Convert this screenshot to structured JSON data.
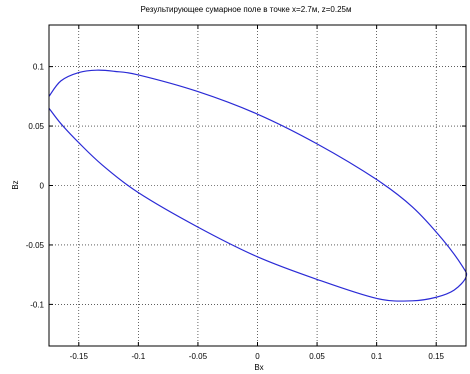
{
  "chart_data": {
    "type": "line",
    "title": "Результирующее сумарное поле в точке x=2.7м,  z=0.25м",
    "xlabel": "Bx",
    "ylabel": "Bz",
    "xlim": [
      -0.175,
      0.175
    ],
    "ylim": [
      -0.135,
      0.135
    ],
    "x_ticks": [
      -0.15,
      -0.1,
      -0.05,
      0,
      0.05,
      0.1,
      0.15
    ],
    "x_tick_labels": [
      "-0.15",
      "-0.1",
      "-0.05",
      "0",
      "0.05",
      "0.1",
      "0.15"
    ],
    "y_ticks": [
      -0.1,
      -0.05,
      0,
      0.05,
      0.1
    ],
    "y_tick_labels": [
      "-0.1",
      "-0.05",
      "0",
      "0.05",
      "0.1"
    ],
    "grid": true,
    "grid_style": "dotted",
    "box": true,
    "series": [
      {
        "color": "#2b2bd6",
        "x": [
          -0.175,
          -0.165,
          -0.15,
          -0.135,
          -0.12,
          -0.1,
          -0.05,
          0.0,
          0.05,
          0.1,
          0.13,
          0.155,
          0.172,
          0.175,
          0.165,
          0.15,
          0.13,
          0.1,
          0.05,
          0.0,
          -0.05,
          -0.1,
          -0.13,
          -0.15,
          -0.165,
          -0.175
        ],
        "y": [
          0.075,
          0.088,
          0.095,
          0.097,
          0.096,
          0.093,
          0.079,
          0.06,
          0.035,
          0.005,
          -0.018,
          -0.045,
          -0.068,
          -0.077,
          -0.088,
          -0.094,
          -0.097,
          -0.095,
          -0.079,
          -0.06,
          -0.035,
          -0.006,
          0.017,
          0.036,
          0.052,
          0.065
        ]
      }
    ]
  },
  "colors": {
    "axes": "#000000",
    "grid": "#000000",
    "background": "#ffffff",
    "line": "#2b2bd6"
  }
}
